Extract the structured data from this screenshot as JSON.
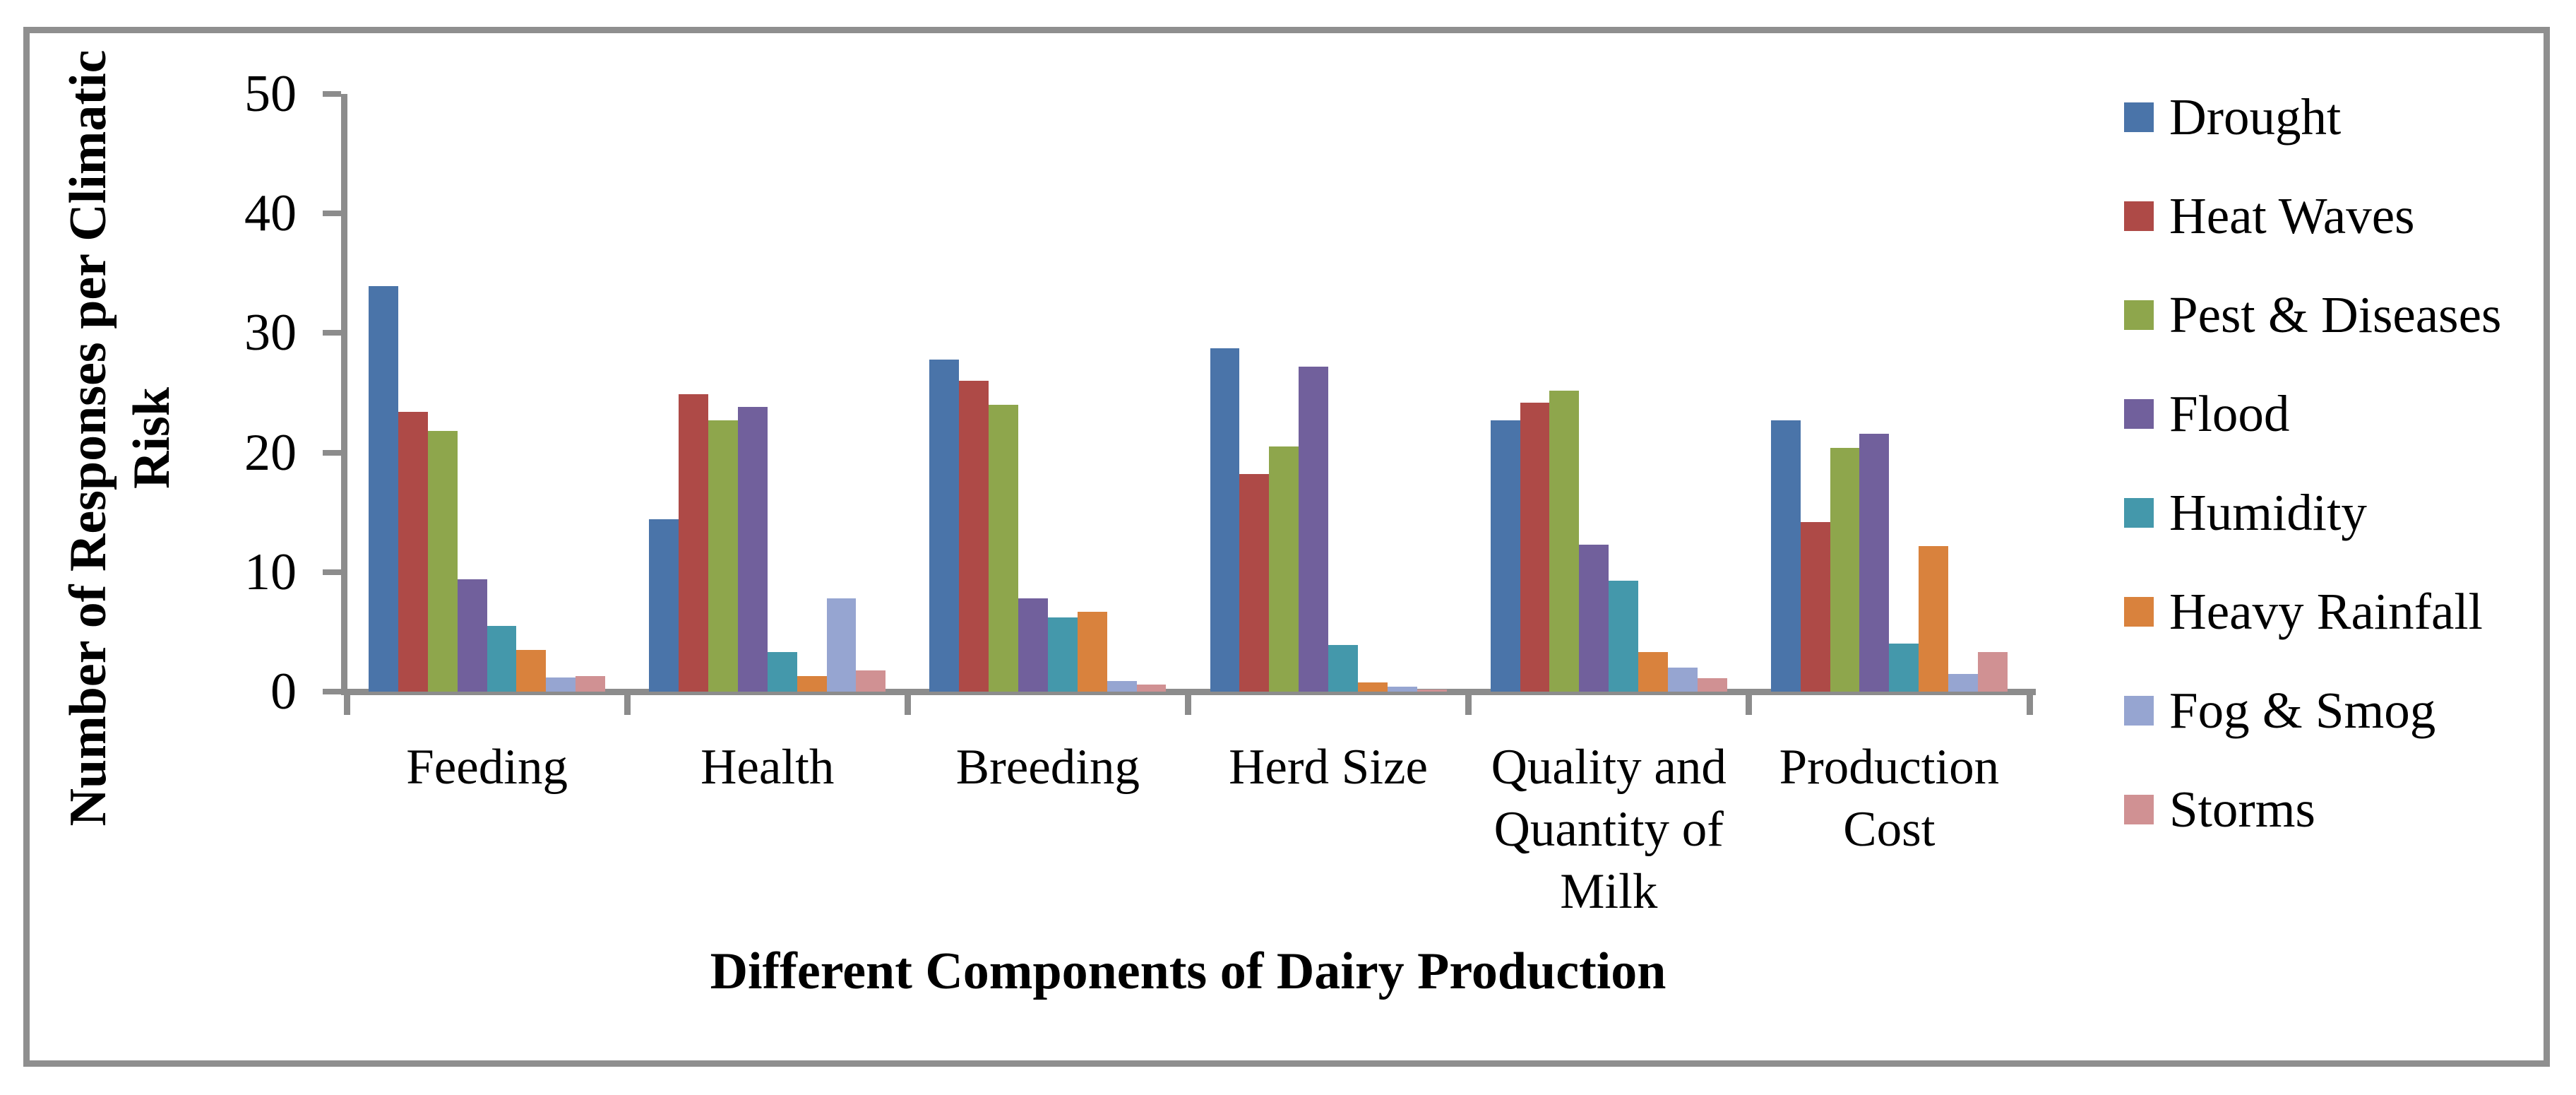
{
  "figure": {
    "y_axis_title_line1": "Number of Responses per Climatic",
    "y_axis_title_line2": "Risk",
    "x_axis_title": "Different Components of Dairy Production",
    "axis_color": "#8C8C8C",
    "border_color": "#8F8F8F"
  },
  "chart_data": {
    "type": "bar",
    "title": "",
    "xlabel": "Different Components of Dairy Production",
    "ylabel": "Number of Responses per Climatic Risk",
    "ylim": [
      0,
      50
    ],
    "yticks": [
      0,
      10,
      20,
      30,
      40,
      50
    ],
    "grid": false,
    "legend_position": "right",
    "categories": [
      "Feeding",
      "Health",
      "Breeding",
      "Herd Size",
      "Quality and Quantity of Milk",
      "Production Cost"
    ],
    "category_label_lines": [
      "Feeding",
      "Health",
      "Breeding",
      "Herd Size",
      "Quality and\nQuantity of\nMilk",
      "Production\nCost"
    ],
    "series": [
      {
        "name": "Drought",
        "color": "#4A74A9",
        "values": [
          33.9,
          14.4,
          27.8,
          28.7,
          22.7,
          22.7
        ]
      },
      {
        "name": "Heat Waves",
        "color": "#AE4A47",
        "values": [
          23.4,
          24.9,
          26.0,
          18.2,
          24.2,
          14.2
        ]
      },
      {
        "name": "Pest & Diseases",
        "color": "#8EA64C",
        "values": [
          21.8,
          22.7,
          24.0,
          20.5,
          25.2,
          20.4
        ]
      },
      {
        "name": "Flood",
        "color": "#71609C",
        "values": [
          9.4,
          23.8,
          7.8,
          27.2,
          12.3,
          21.6
        ]
      },
      {
        "name": "Humidity",
        "color": "#4498AB",
        "values": [
          5.5,
          3.3,
          6.2,
          3.9,
          9.3,
          4.0
        ]
      },
      {
        "name": "Heavy Rainfall",
        "color": "#D9823D",
        "values": [
          3.5,
          1.3,
          6.7,
          0.8,
          3.3,
          12.2
        ]
      },
      {
        "name": "Fog & Smog",
        "color": "#96A5D1",
        "values": [
          1.2,
          7.8,
          0.9,
          0.4,
          2.0,
          1.5
        ]
      },
      {
        "name": "Storms",
        "color": "#D09193",
        "values": [
          1.3,
          1.8,
          0.6,
          0.2,
          1.1,
          3.3
        ]
      }
    ]
  }
}
